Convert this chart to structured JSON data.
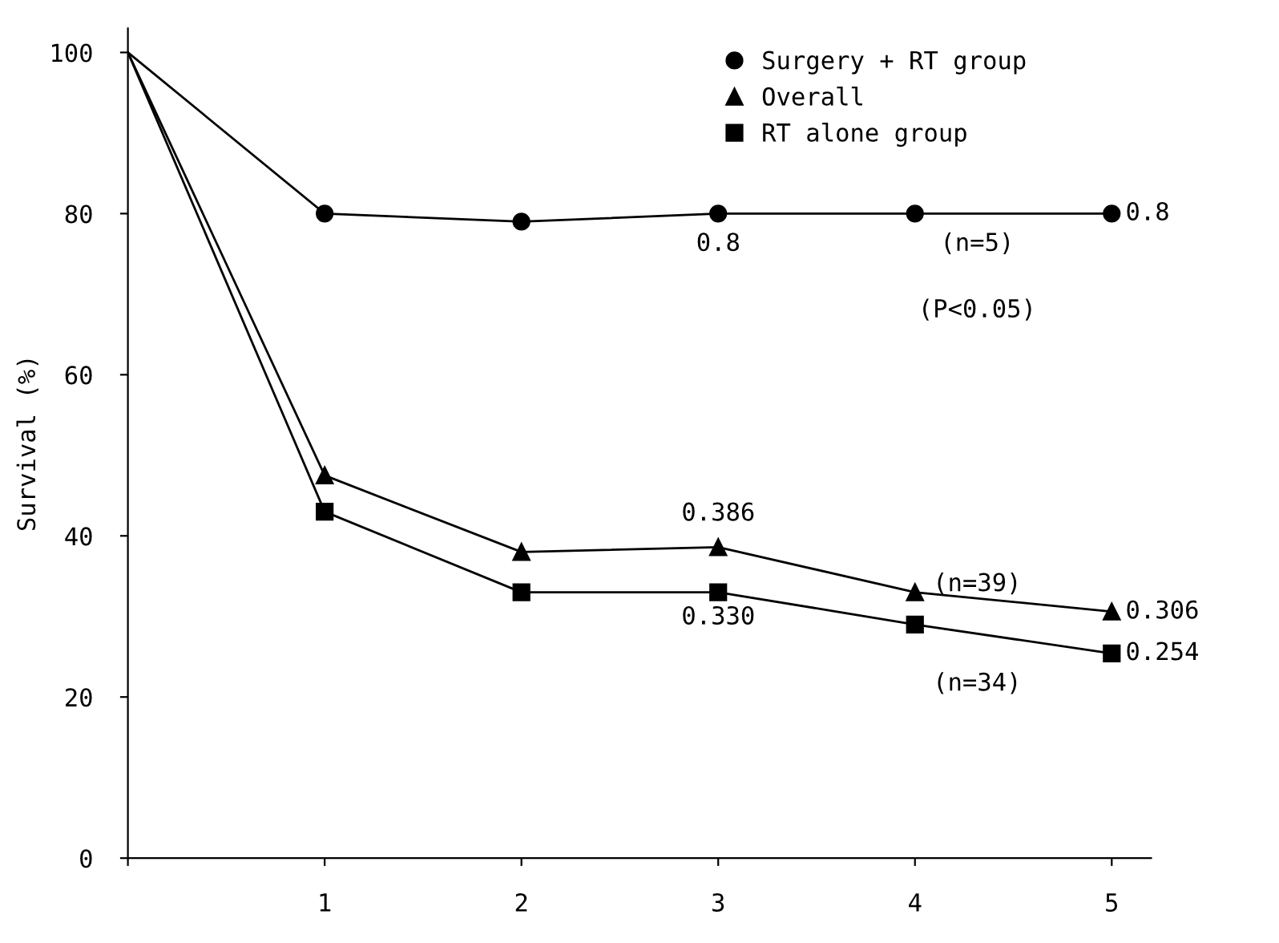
{
  "chart_data": {
    "type": "line",
    "ylabel": "Survival (%)",
    "x": [
      0,
      1,
      2,
      3,
      4,
      5
    ],
    "series": [
      {
        "name": "Surgery + RT group",
        "color": "#000000",
        "marker": "circle",
        "values": [
          100,
          80,
          79,
          80,
          80,
          80
        ]
      },
      {
        "name": "Overall",
        "color": "#000000",
        "marker": "triangle",
        "values": [
          100,
          47.5,
          38,
          38.6,
          33,
          30.6
        ]
      },
      {
        "name": "RT alone group",
        "color": "#000000",
        "marker": "square",
        "values": [
          100,
          43,
          33,
          33.0,
          29,
          25.4
        ]
      }
    ],
    "xlim": [
      0,
      5.2
    ],
    "ylim": [
      0,
      103
    ],
    "xticks": [
      {
        "value": 0,
        "label": null
      },
      1,
      2,
      3,
      4,
      5
    ],
    "yticks": [
      0,
      20,
      40,
      60,
      80,
      100
    ],
    "annotations": [
      "0.8",
      "0.8",
      "0.386",
      "0.306",
      "0.330",
      "0.254",
      "(n=5)",
      "(P<0.05)",
      "(n=39)",
      "(n=34)"
    ],
    "grid": false,
    "legend": "top right",
    "line_style": "solid"
  }
}
